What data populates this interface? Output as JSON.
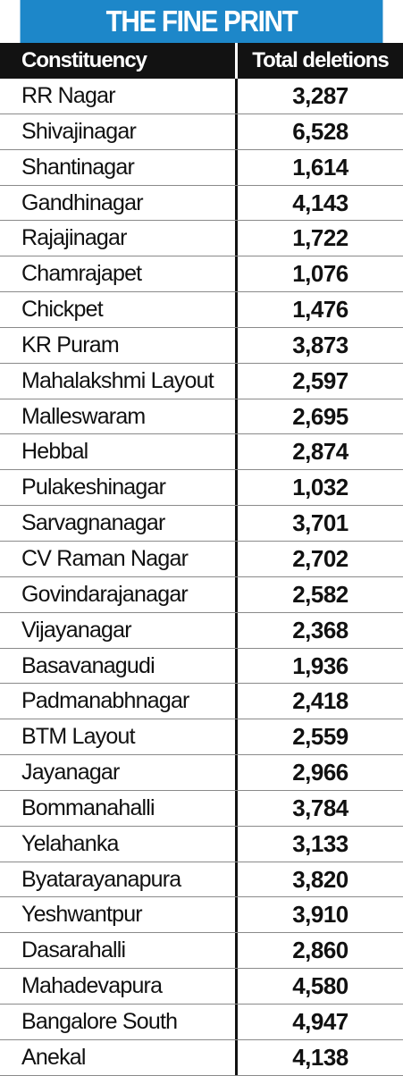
{
  "title": "THE FINE PRINT",
  "header": {
    "name_label": "Constituency",
    "value_label": "Total deletions"
  },
  "rows": [
    {
      "name": "RR Nagar",
      "value": "3,287"
    },
    {
      "name": "Shivajinagar",
      "value": "6,528"
    },
    {
      "name": "Shantinagar",
      "value": "1,614"
    },
    {
      "name": "Gandhinagar",
      "value": "4,143"
    },
    {
      "name": "Rajajinagar",
      "value": "1,722"
    },
    {
      "name": "Chamrajapet",
      "value": "1,076"
    },
    {
      "name": "Chickpet",
      "value": "1,476"
    },
    {
      "name": "KR Puram",
      "value": "3,873"
    },
    {
      "name": "Mahalakshmi Layout",
      "value": "2,597"
    },
    {
      "name": "Malleswaram",
      "value": "2,695"
    },
    {
      "name": "Hebbal",
      "value": "2,874"
    },
    {
      "name": "Pulakeshinagar",
      "value": "1,032"
    },
    {
      "name": "Sarvagnanagar",
      "value": "3,701"
    },
    {
      "name": "CV Raman Nagar",
      "value": "2,702"
    },
    {
      "name": "Govindarajanagar",
      "value": "2,582"
    },
    {
      "name": "Vijayanagar",
      "value": "2,368"
    },
    {
      "name": "Basavanagudi",
      "value": "1,936"
    },
    {
      "name": "Padmanabhnagar",
      "value": "2,418"
    },
    {
      "name": "BTM Layout",
      "value": "2,559"
    },
    {
      "name": "Jayanagar",
      "value": "2,966"
    },
    {
      "name": "Bommanahalli",
      "value": "3,784"
    },
    {
      "name": "Yelahanka",
      "value": "3,133"
    },
    {
      "name": "Byatarayanapura",
      "value": "3,820"
    },
    {
      "name": "Yeshwantpur",
      "value": "3,910"
    },
    {
      "name": "Dasarahalli",
      "value": "2,860"
    },
    {
      "name": "Mahadevapura",
      "value": "4,580"
    },
    {
      "name": "Bangalore South",
      "value": "4,947"
    },
    {
      "name": "Anekal",
      "value": "4,138"
    }
  ],
  "colors": {
    "title_bg": "#1d87c9",
    "header_bg": "#121212"
  }
}
